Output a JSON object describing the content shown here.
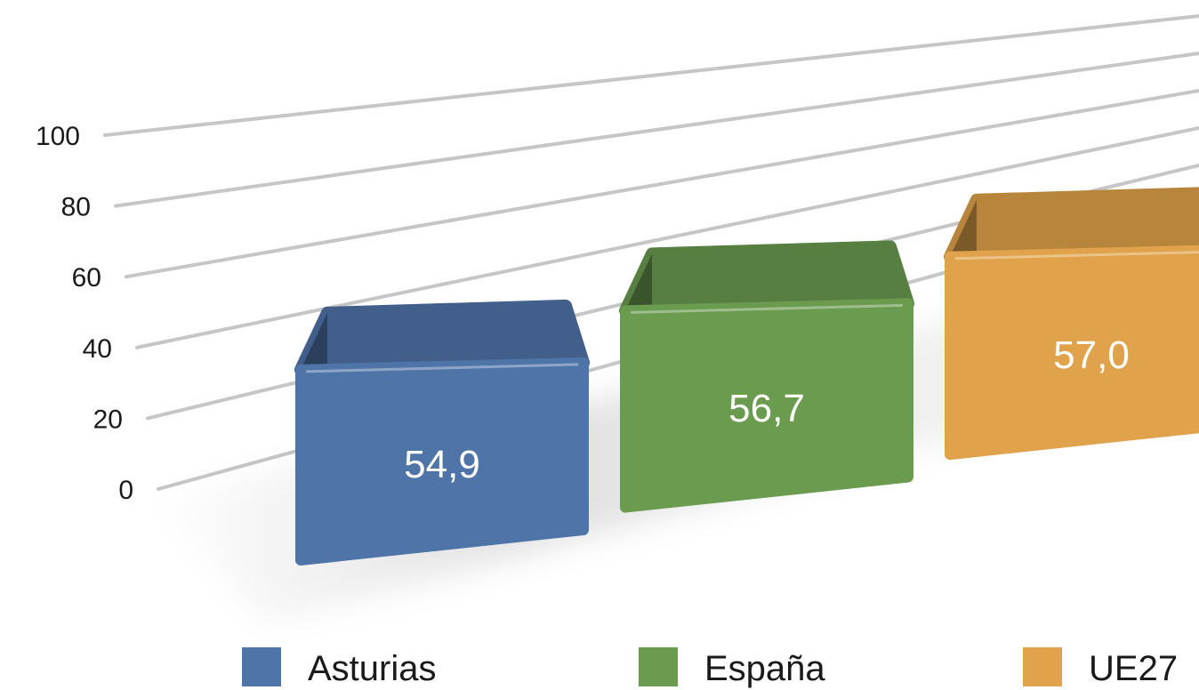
{
  "chart_data": {
    "type": "bar",
    "categories": [
      "Asturias",
      "España",
      "UE27"
    ],
    "values": [
      54.9,
      56.7,
      57.0
    ],
    "value_labels": [
      "54,9",
      "56,7",
      "57,0"
    ],
    "colors": [
      "#4f74a8",
      "#6a9b4f",
      "#e0a24a"
    ],
    "y_ticks": [
      "0",
      "20",
      "40",
      "60",
      "80",
      "100"
    ],
    "ylim": [
      0,
      100
    ],
    "grid": true,
    "legend": "bottom",
    "style": "3d"
  }
}
